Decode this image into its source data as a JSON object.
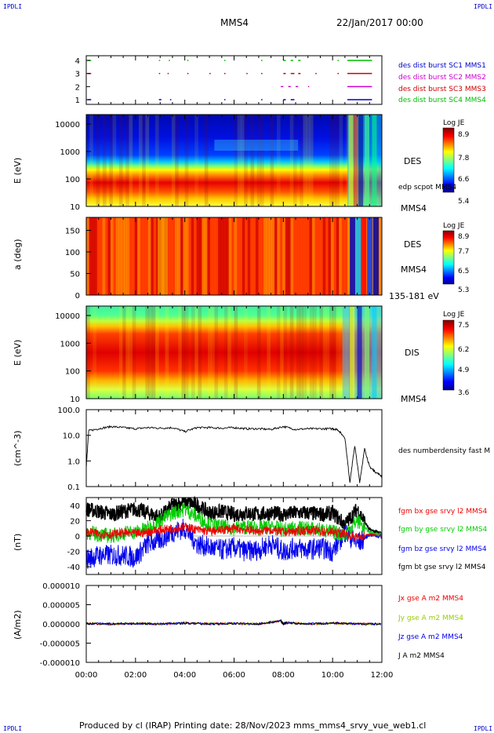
{
  "header": {
    "corner_left_top": "IPDLI",
    "corner_right_top": "IPDLI",
    "spacecraft": "MMS4",
    "datetime": "22/Jan/2017 00:00"
  },
  "footer": {
    "text": "Produced by cl (IRAP)   Printing date: 28/Nov/2023   mms_mms4_srvy_vue_web1.cl",
    "corner_left_bottom": "IPDLI",
    "corner_right_bottom": "IPDLI"
  },
  "colors": {
    "mms1": "#0000cc",
    "mms2": "#cc00cc",
    "mms3": "#cc0000",
    "mms4": "#00bb00",
    "bx": "#ee0000",
    "by": "#00cc00",
    "bz": "#0000ee",
    "bt": "#000000"
  },
  "x_axis": {
    "ticks": [
      "00:00",
      "02:00",
      "04:00",
      "06:00",
      "08:00",
      "10:00",
      "12:00"
    ],
    "range_hours": [
      0,
      12
    ]
  },
  "chart_data": [
    {
      "type": "scatter",
      "name": "burst-availability",
      "yticks": [
        "4",
        "3",
        "2",
        "1"
      ],
      "legend": [
        "des dist burst SC1 MMS1",
        "des dist burst SC2 MMS2",
        "des dist burst SC3 MMS3",
        "des dist burst SC4 MMS4"
      ],
      "series": [
        {
          "level": 4,
          "color_key": "mms4",
          "segments_hours": [
            [
              0.05,
              0.2
            ],
            [
              2.95,
              3.0
            ],
            [
              3.35,
              3.4
            ],
            [
              4.1,
              4.15
            ],
            [
              5.6,
              5.65
            ],
            [
              7.1,
              7.15
            ],
            [
              8.0,
              8.1
            ],
            [
              8.3,
              8.4
            ],
            [
              8.6,
              8.7
            ],
            [
              10.2,
              10.25
            ],
            [
              10.6,
              11.6
            ]
          ]
        },
        {
          "level": 3,
          "color_key": "mms3",
          "segments_hours": [
            [
              0.05,
              0.2
            ],
            [
              2.95,
              3.0
            ],
            [
              3.3,
              3.35
            ],
            [
              4.1,
              4.15
            ],
            [
              5.0,
              5.05
            ],
            [
              5.6,
              5.65
            ],
            [
              6.5,
              6.55
            ],
            [
              7.1,
              7.15
            ],
            [
              8.0,
              8.1
            ],
            [
              8.3,
              8.45
            ],
            [
              8.6,
              8.7
            ],
            [
              9.3,
              9.35
            ],
            [
              10.2,
              10.25
            ],
            [
              10.6,
              11.6
            ]
          ]
        },
        {
          "level": 2,
          "color_key": "mms2",
          "segments_hours": [
            [
              7.9,
              8.0
            ],
            [
              8.2,
              8.3
            ],
            [
              8.5,
              8.6
            ],
            [
              9.0,
              9.05
            ],
            [
              10.6,
              11.6
            ]
          ]
        },
        {
          "level": 1,
          "color_key": "mms1",
          "segments_hours": [
            [
              0.05,
              0.2
            ],
            [
              2.95,
              3.05
            ],
            [
              3.4,
              3.45
            ],
            [
              5.6,
              5.65
            ],
            [
              7.1,
              7.15
            ],
            [
              8.0,
              8.1
            ],
            [
              8.3,
              8.45
            ],
            [
              10.6,
              11.6
            ]
          ]
        }
      ]
    },
    {
      "type": "heatmap",
      "name": "des-energy-spectrogram",
      "ylabel": "E (eV)",
      "yticks": [
        "10000",
        "1000",
        "100",
        "10"
      ],
      "side_label": "DES",
      "extra_label": "edp scpot MMS4",
      "bottom_label": "MMS4",
      "colorbar": {
        "title": "Log JE",
        "ticks": [
          "8.9",
          "7.8",
          "6.6",
          "5.4"
        ]
      }
    },
    {
      "type": "heatmap",
      "name": "des-pitch-angle",
      "ylabel": "a (deg)",
      "yticks": [
        "150",
        "100",
        "50",
        "0"
      ],
      "side_label": "DES",
      "extra_label": "MMS4",
      "bottom_label": "135-181 eV",
      "colorbar": {
        "title": "Log JE",
        "ticks": [
          "8.9",
          "7.7",
          "6.5",
          "5.3"
        ]
      }
    },
    {
      "type": "heatmap",
      "name": "dis-energy-spectrogram",
      "ylabel": "E (eV)",
      "yticks": [
        "10000",
        "1000",
        "100",
        "10"
      ],
      "side_label": "DIS",
      "bottom_label": "MMS4",
      "colorbar": {
        "title": "Log JE",
        "ticks": [
          "7.5",
          "6.2",
          "4.9",
          "3.6"
        ]
      }
    },
    {
      "type": "line",
      "name": "electron-density",
      "ylabel": "(cm^-3)",
      "yticks": [
        "100.0",
        "10.0",
        "1.0",
        "0.1"
      ],
      "ylim": [
        0.1,
        100
      ],
      "scale": "log",
      "legend": [
        "des numberdensity fast M"
      ],
      "x": [
        0.0,
        0.1,
        0.5,
        1.0,
        1.5,
        2.0,
        2.5,
        3.0,
        3.5,
        4.0,
        4.5,
        5.0,
        5.5,
        6.0,
        6.5,
        7.0,
        7.5,
        8.0,
        8.5,
        9.0,
        9.5,
        10.0,
        10.2,
        10.5,
        10.7,
        10.9,
        11.1,
        11.3,
        11.5,
        11.7,
        12.0
      ],
      "y": [
        0.6,
        15,
        18,
        22,
        20,
        18,
        20,
        19,
        20,
        14,
        20,
        20,
        19,
        20,
        18,
        18,
        17,
        22,
        17,
        18,
        18,
        18,
        17,
        8,
        0.15,
        4,
        0.15,
        3,
        0.6,
        0.4,
        0.25
      ]
    },
    {
      "type": "line",
      "name": "magnetic-field",
      "ylabel": "(nT)",
      "yticks": [
        "40",
        "20",
        "0",
        "-20",
        "-40"
      ],
      "ylim": [
        -50,
        50
      ],
      "legend": [
        "fgm bx gse srvy l2 MMS4",
        "fgm by gse srvy l2 MMS4",
        "fgm bz gse srvy l2 MMS4",
        "fgm bt gse srvy l2 MMS4"
      ],
      "x": [
        0.0,
        0.5,
        1.0,
        1.5,
        2.0,
        2.5,
        3.0,
        3.5,
        4.0,
        4.5,
        5.0,
        5.5,
        6.0,
        6.5,
        7.0,
        7.5,
        8.0,
        8.5,
        9.0,
        9.5,
        10.0,
        10.5,
        11.0,
        11.5,
        12.0
      ],
      "series": [
        {
          "name": "bx",
          "color_key": "bx",
          "y": [
            5,
            3,
            2,
            4,
            3,
            5,
            8,
            10,
            12,
            8,
            6,
            8,
            10,
            8,
            6,
            8,
            5,
            6,
            8,
            6,
            5,
            3,
            -2,
            2,
            0
          ]
        },
        {
          "name": "by",
          "color_key": "by",
          "y": [
            5,
            2,
            0,
            4,
            5,
            10,
            20,
            30,
            35,
            25,
            15,
            12,
            10,
            12,
            10,
            12,
            8,
            10,
            10,
            8,
            5,
            2,
            20,
            5,
            2
          ]
        },
        {
          "name": "bz",
          "color_key": "bz",
          "y": [
            -30,
            -25,
            -25,
            -25,
            -28,
            -10,
            -5,
            5,
            10,
            -10,
            -15,
            -18,
            -15,
            -20,
            -18,
            -10,
            -20,
            -15,
            -18,
            -15,
            -20,
            5,
            -10,
            2,
            -1
          ]
        },
        {
          "name": "bt",
          "color_key": "bt",
          "y": [
            35,
            32,
            28,
            32,
            35,
            30,
            25,
            40,
            45,
            40,
            30,
            32,
            28,
            30,
            28,
            30,
            28,
            30,
            30,
            28,
            30,
            15,
            35,
            8,
            3
          ]
        }
      ]
    },
    {
      "type": "line",
      "name": "current-density",
      "ylabel": "(A/m2)",
      "yticks": [
        "0.000010",
        "0.000005",
        "0.000000",
        "-0.000005",
        "-0.000010"
      ],
      "ylim": [
        -1e-05,
        1e-05
      ],
      "legend": [
        "Jx gse A m2 MMS4",
        "Jy gse A m2 MMS4",
        "Jz gse A m2 MMS4",
        "J A m2 MMS4"
      ],
      "x": [
        0,
        1,
        2,
        3,
        4,
        5,
        6,
        7,
        7.9,
        8,
        8.1,
        9,
        10,
        11,
        12
      ],
      "y": [
        1e-07,
        0,
        1e-07,
        0,
        2e-07,
        0,
        1e-07,
        0,
        8e-07,
        0,
        3e-07,
        0,
        2e-07,
        0,
        0
      ]
    }
  ]
}
